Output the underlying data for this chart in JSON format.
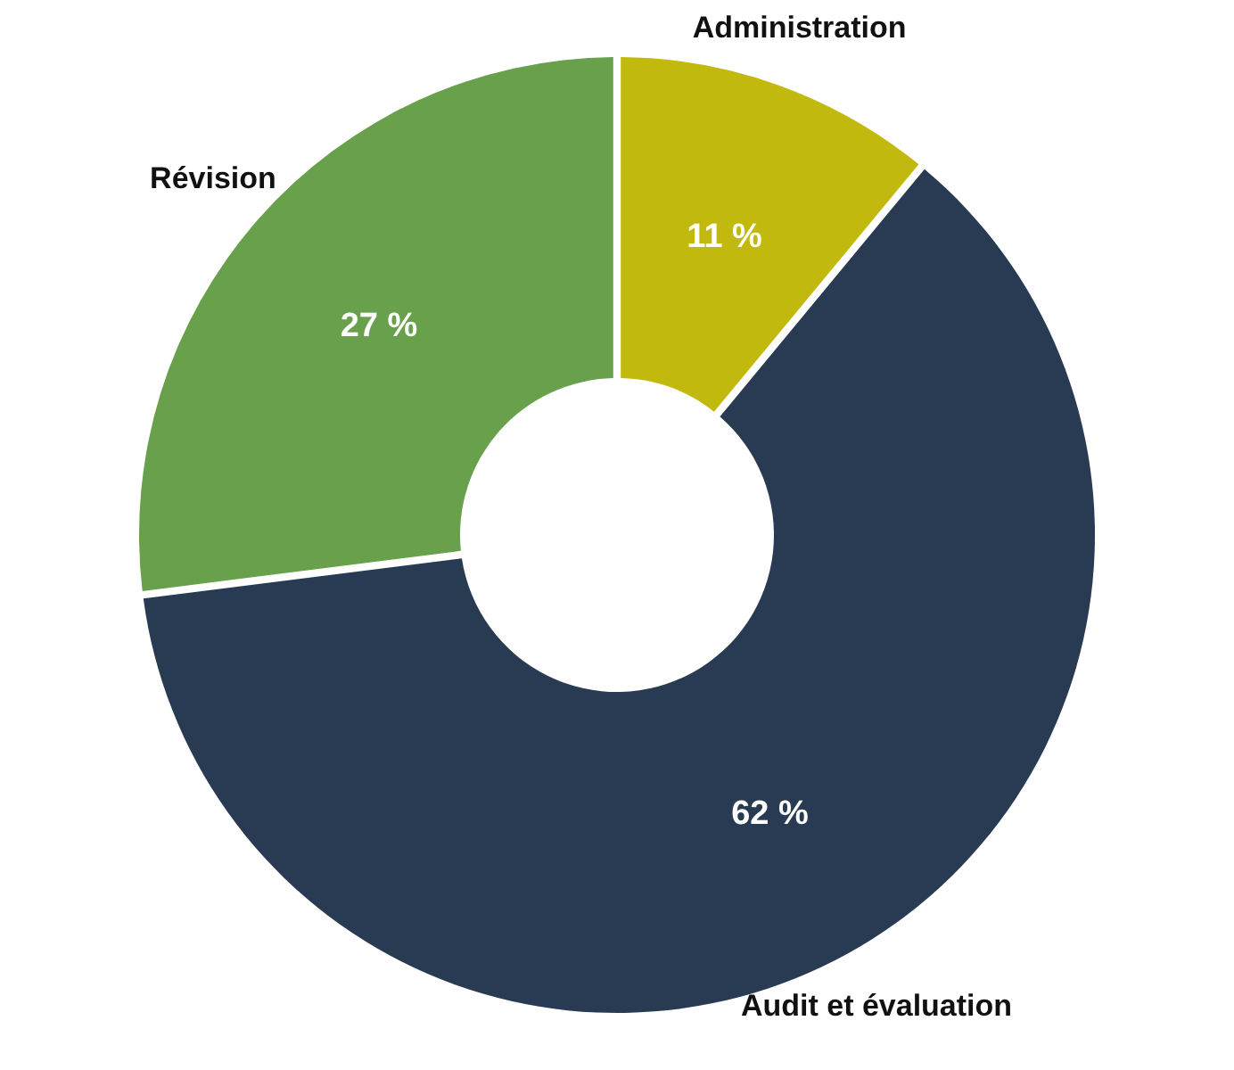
{
  "chart_data": {
    "type": "donut",
    "categories": [
      "Administration",
      "Audit et évaluation",
      "Révision"
    ],
    "values": [
      11,
      62,
      27
    ],
    "colors": [
      "#c2b90e",
      "#283b52",
      "#68a04b"
    ],
    "value_labels": [
      "11 %",
      "62 %",
      "27 %"
    ]
  }
}
